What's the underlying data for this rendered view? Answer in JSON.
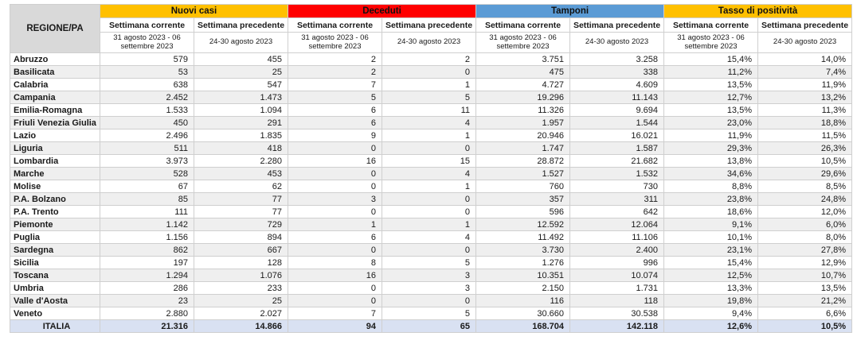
{
  "chart_data": {
    "type": "table",
    "title": "",
    "region_column_header": "REGIONE/PA",
    "subheader_current": "Settimana corrente",
    "subheader_previous": "Settimana precedente",
    "date_current": "31 agosto 2023 - 06 settembre 2023",
    "date_previous": "24-30 agosto 2023",
    "column_groups": [
      {
        "label": "Nuovi casi",
        "color": "#FFC000"
      },
      {
        "label": "Deceduti",
        "color": "#FF0000"
      },
      {
        "label": "Tamponi",
        "color": "#5B9BD5"
      },
      {
        "label": "Tasso di positività",
        "color": "#FFC000"
      }
    ],
    "colors": {
      "region_header_bg": "#D9D9D9",
      "stripe_even_bg": "#EFEFEF",
      "total_row_bg": "#D9E1F2"
    },
    "rows": [
      {
        "region": "Abruzzo",
        "values": [
          "579",
          "455",
          "2",
          "2",
          "3.751",
          "3.258",
          "15,4%",
          "14,0%"
        ]
      },
      {
        "region": "Basilicata",
        "values": [
          "53",
          "25",
          "2",
          "0",
          "475",
          "338",
          "11,2%",
          "7,4%"
        ]
      },
      {
        "region": "Calabria",
        "values": [
          "638",
          "547",
          "7",
          "1",
          "4.727",
          "4.609",
          "13,5%",
          "11,9%"
        ]
      },
      {
        "region": "Campania",
        "values": [
          "2.452",
          "1.473",
          "5",
          "5",
          "19.296",
          "11.143",
          "12,7%",
          "13,2%"
        ]
      },
      {
        "region": "Emilia-Romagna",
        "values": [
          "1.533",
          "1.094",
          "6",
          "11",
          "11.326",
          "9.694",
          "13,5%",
          "11,3%"
        ]
      },
      {
        "region": "Friuli Venezia Giulia",
        "values": [
          "450",
          "291",
          "6",
          "4",
          "1.957",
          "1.544",
          "23,0%",
          "18,8%"
        ]
      },
      {
        "region": "Lazio",
        "values": [
          "2.496",
          "1.835",
          "9",
          "1",
          "20.946",
          "16.021",
          "11,9%",
          "11,5%"
        ]
      },
      {
        "region": "Liguria",
        "values": [
          "511",
          "418",
          "0",
          "0",
          "1.747",
          "1.587",
          "29,3%",
          "26,3%"
        ]
      },
      {
        "region": "Lombardia",
        "values": [
          "3.973",
          "2.280",
          "16",
          "15",
          "28.872",
          "21.682",
          "13,8%",
          "10,5%"
        ]
      },
      {
        "region": "Marche",
        "values": [
          "528",
          "453",
          "0",
          "4",
          "1.527",
          "1.532",
          "34,6%",
          "29,6%"
        ]
      },
      {
        "region": "Molise",
        "values": [
          "67",
          "62",
          "0",
          "1",
          "760",
          "730",
          "8,8%",
          "8,5%"
        ]
      },
      {
        "region": "P.A. Bolzano",
        "values": [
          "85",
          "77",
          "3",
          "0",
          "357",
          "311",
          "23,8%",
          "24,8%"
        ]
      },
      {
        "region": "P.A. Trento",
        "values": [
          "111",
          "77",
          "0",
          "0",
          "596",
          "642",
          "18,6%",
          "12,0%"
        ]
      },
      {
        "region": "Piemonte",
        "values": [
          "1.142",
          "729",
          "1",
          "1",
          "12.592",
          "12.064",
          "9,1%",
          "6,0%"
        ]
      },
      {
        "region": "Puglia",
        "values": [
          "1.156",
          "894",
          "6",
          "4",
          "11.492",
          "11.106",
          "10,1%",
          "8,0%"
        ]
      },
      {
        "region": "Sardegna",
        "values": [
          "862",
          "667",
          "0",
          "0",
          "3.730",
          "2.400",
          "23,1%",
          "27,8%"
        ]
      },
      {
        "region": "Sicilia",
        "values": [
          "197",
          "128",
          "8",
          "5",
          "1.276",
          "996",
          "15,4%",
          "12,9%"
        ]
      },
      {
        "region": "Toscana",
        "values": [
          "1.294",
          "1.076",
          "16",
          "3",
          "10.351",
          "10.074",
          "12,5%",
          "10,7%"
        ]
      },
      {
        "region": "Umbria",
        "values": [
          "286",
          "233",
          "0",
          "3",
          "2.150",
          "1.731",
          "13,3%",
          "13,5%"
        ]
      },
      {
        "region": "Valle d'Aosta",
        "values": [
          "23",
          "25",
          "0",
          "0",
          "116",
          "118",
          "19,8%",
          "21,2%"
        ]
      },
      {
        "region": "Veneto",
        "values": [
          "2.880",
          "2.027",
          "7",
          "5",
          "30.660",
          "30.538",
          "9,4%",
          "6,6%"
        ]
      }
    ],
    "total_row": {
      "region": "ITALIA",
      "values": [
        "21.316",
        "14.866",
        "94",
        "65",
        "168.704",
        "142.118",
        "12,6%",
        "10,5%"
      ]
    }
  }
}
